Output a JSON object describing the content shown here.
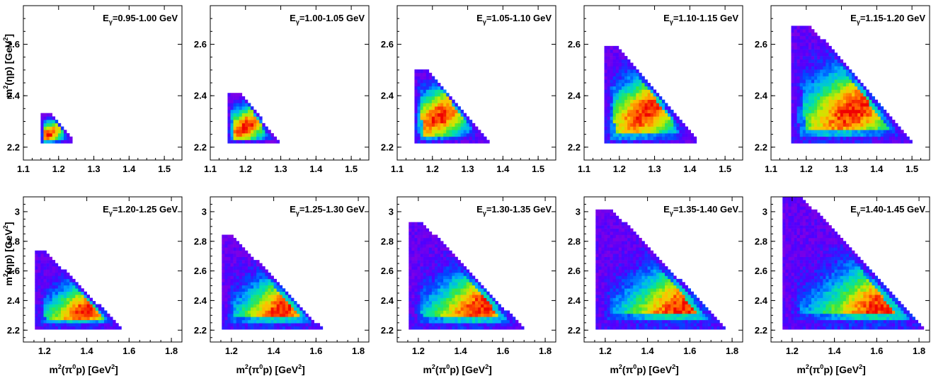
{
  "chart_data": [
    {
      "type": "heatmap",
      "label_main": "E",
      "label_sub": "γ",
      "label_value": "=0.95-1.00 GeV",
      "xlim": [
        1.1,
        1.55
      ],
      "xticks": [
        "1.1",
        "1.2",
        "1.3",
        "1.4",
        "1.5"
      ],
      "xtick_values": [
        1.1,
        1.2,
        1.3,
        1.4,
        1.5
      ],
      "ylim": [
        2.15,
        2.75
      ],
      "yticks": [
        "2.2",
        "2.4",
        "2.6"
      ],
      "ytick_values": [
        2.2,
        2.4,
        2.6
      ],
      "ylabel_text": "m",
      "ylabel_sup": "2",
      "ylabel_rest": "(ηp)  [GeV",
      "ylabel_sup2": "2",
      "ylabel_end": "]",
      "region": {
        "xmin": 1.15,
        "ymin": 2.21,
        "xmax_top": 1.18,
        "xmax_bot": 1.25,
        "ytop": 2.33
      },
      "peak": [
        1.17,
        2.25
      ]
    },
    {
      "type": "heatmap",
      "label_main": "E",
      "label_sub": "γ",
      "label_value": "=1.00-1.05 GeV",
      "xlim": [
        1.1,
        1.55
      ],
      "xticks": [
        "1.1",
        "1.2",
        "1.3",
        "1.4",
        "1.5"
      ],
      "xtick_values": [
        1.1,
        1.2,
        1.3,
        1.4,
        1.5
      ],
      "ylim": [
        2.15,
        2.75
      ],
      "yticks": [
        "2.2",
        "2.4",
        "2.6"
      ],
      "ytick_values": [
        2.2,
        2.4,
        2.6
      ],
      "region": {
        "xmin": 1.15,
        "ymin": 2.21,
        "xmax_top": 1.19,
        "xmax_bot": 1.3,
        "ytop": 2.41
      },
      "peak": [
        1.2,
        2.28
      ]
    },
    {
      "type": "heatmap",
      "label_main": "E",
      "label_sub": "γ",
      "label_value": "=1.05-1.10 GeV",
      "xlim": [
        1.1,
        1.55
      ],
      "xticks": [
        "1.1",
        "1.2",
        "1.3",
        "1.4",
        "1.5"
      ],
      "xtick_values": [
        1.1,
        1.2,
        1.3,
        1.4,
        1.5
      ],
      "ylim": [
        2.15,
        2.75
      ],
      "yticks": [
        "2.2",
        "2.4",
        "2.6"
      ],
      "ytick_values": [
        2.2,
        2.4,
        2.6
      ],
      "region": {
        "xmin": 1.15,
        "ymin": 2.21,
        "xmax_top": 1.19,
        "xmax_bot": 1.37,
        "ytop": 2.5
      },
      "peak": [
        1.22,
        2.32
      ]
    },
    {
      "type": "heatmap",
      "label_main": "E",
      "label_sub": "γ",
      "label_value": "=1.10-1.15 GeV",
      "xlim": [
        1.1,
        1.55
      ],
      "xticks": [
        "1.1",
        "1.2",
        "1.3",
        "1.4",
        "1.5"
      ],
      "xtick_values": [
        1.1,
        1.2,
        1.3,
        1.4,
        1.5
      ],
      "ylim": [
        2.15,
        2.75
      ],
      "yticks": [
        "2.2",
        "2.4",
        "2.6"
      ],
      "ytick_values": [
        2.2,
        2.4,
        2.6
      ],
      "region": {
        "xmin": 1.16,
        "ymin": 2.21,
        "xmax_top": 1.2,
        "xmax_bot": 1.43,
        "ytop": 2.59
      },
      "peak": [
        1.28,
        2.34
      ]
    },
    {
      "type": "heatmap",
      "label_main": "E",
      "label_sub": "γ",
      "label_value": "=1.15-1.20 GeV",
      "xlim": [
        1.1,
        1.55
      ],
      "xticks": [
        "1.1",
        "1.2",
        "1.3",
        "1.4",
        "1.5"
      ],
      "xtick_values": [
        1.1,
        1.2,
        1.3,
        1.4,
        1.5
      ],
      "ylim": [
        2.15,
        2.75
      ],
      "yticks": [
        "2.2",
        "2.4",
        "2.6"
      ],
      "ytick_values": [
        2.2,
        2.4,
        2.6
      ],
      "region": {
        "xmin": 1.16,
        "ymin": 2.21,
        "xmax_top": 1.22,
        "xmax_bot": 1.51,
        "ytop": 2.67
      },
      "peak": [
        1.34,
        2.35
      ]
    },
    {
      "type": "heatmap",
      "label_main": "E",
      "label_sub": "γ",
      "label_value": "=1.20-1.25 GeV",
      "xlim": [
        1.1,
        1.85
      ],
      "xticks": [
        "1.2",
        "1.4",
        "1.6",
        "1.8"
      ],
      "xtick_values": [
        1.2,
        1.4,
        1.6,
        1.8
      ],
      "ylim": [
        2.12,
        3.1
      ],
      "yticks": [
        "2.2",
        "2.4",
        "2.6",
        "2.8",
        "3"
      ],
      "ytick_values": [
        2.2,
        2.4,
        2.6,
        2.8,
        3.0
      ],
      "xlabel_text": "m",
      "xlabel_sup": "2",
      "xlabel_rest": "(π",
      "xlabel_sup0": "0",
      "xlabel_rest2": "p)  [GeV",
      "xlabel_sup2": "2",
      "xlabel_end": "]",
      "region": {
        "xmin": 1.16,
        "ymin": 2.21,
        "xmax_top": 1.2,
        "xmax_bot": 1.57,
        "ytop": 2.74
      },
      "peak": [
        1.4,
        2.34
      ]
    },
    {
      "type": "heatmap",
      "label_main": "E",
      "label_sub": "γ",
      "label_value": "=1.25-1.30 GeV",
      "xlim": [
        1.1,
        1.85
      ],
      "xticks": [
        "1.2",
        "1.4",
        "1.6",
        "1.8"
      ],
      "xtick_values": [
        1.2,
        1.4,
        1.6,
        1.8
      ],
      "ylim": [
        2.12,
        3.1
      ],
      "yticks": [
        "2.2",
        "2.4",
        "2.6",
        "2.8",
        "3"
      ],
      "ytick_values": [
        2.2,
        2.4,
        2.6,
        2.8,
        3.0
      ],
      "region": {
        "xmin": 1.16,
        "ymin": 2.21,
        "xmax_top": 1.2,
        "xmax_bot": 1.63,
        "ytop": 2.85
      },
      "peak": [
        1.45,
        2.35
      ]
    },
    {
      "type": "heatmap",
      "label_main": "E",
      "label_sub": "γ",
      "label_value": "=1.30-1.35 GeV",
      "xlim": [
        1.1,
        1.85
      ],
      "xticks": [
        "1.2",
        "1.4",
        "1.6",
        "1.8"
      ],
      "xtick_values": [
        1.2,
        1.4,
        1.6,
        1.8
      ],
      "ylim": [
        2.12,
        3.1
      ],
      "yticks": [
        "2.2",
        "2.4",
        "2.6",
        "2.8",
        "3"
      ],
      "ytick_values": [
        2.2,
        2.4,
        2.6,
        2.8,
        3.0
      ],
      "region": {
        "xmin": 1.16,
        "ymin": 2.21,
        "xmax_top": 1.22,
        "xmax_bot": 1.7,
        "ytop": 2.93
      },
      "peak": [
        1.5,
        2.36
      ]
    },
    {
      "type": "heatmap",
      "label_main": "E",
      "label_sub": "γ",
      "label_value": "=1.35-1.40 GeV",
      "xlim": [
        1.1,
        1.85
      ],
      "xticks": [
        "1.2",
        "1.4",
        "1.6",
        "1.8"
      ],
      "xtick_values": [
        1.2,
        1.4,
        1.6,
        1.8
      ],
      "ylim": [
        2.12,
        3.1
      ],
      "yticks": [
        "2.2",
        "2.4",
        "2.6",
        "2.8",
        "3"
      ],
      "ytick_values": [
        2.2,
        2.4,
        2.6,
        2.8,
        3.0
      ],
      "region": {
        "xmin": 1.16,
        "ymin": 2.21,
        "xmax_top": 1.24,
        "xmax_bot": 1.77,
        "ytop": 3.02
      },
      "peak": [
        1.56,
        2.35
      ]
    },
    {
      "type": "heatmap",
      "label_main": "E",
      "label_sub": "γ",
      "label_value": "=1.40-1.45 GeV",
      "xlim": [
        1.1,
        1.85
      ],
      "xticks": [
        "1.2",
        "1.4",
        "1.6",
        "1.8"
      ],
      "xtick_values": [
        1.2,
        1.4,
        1.6,
        1.8
      ],
      "ylim": [
        2.12,
        3.1
      ],
      "yticks": [
        "2.2",
        "2.4",
        "2.6",
        "2.8",
        "3"
      ],
      "ytick_values": [
        2.2,
        2.4,
        2.6,
        2.8,
        3.0
      ],
      "region": {
        "xmin": 1.16,
        "ymin": 2.21,
        "xmax_top": 1.26,
        "xmax_bot": 1.83,
        "ytop": 3.1
      },
      "peak": [
        1.62,
        2.35
      ]
    }
  ]
}
